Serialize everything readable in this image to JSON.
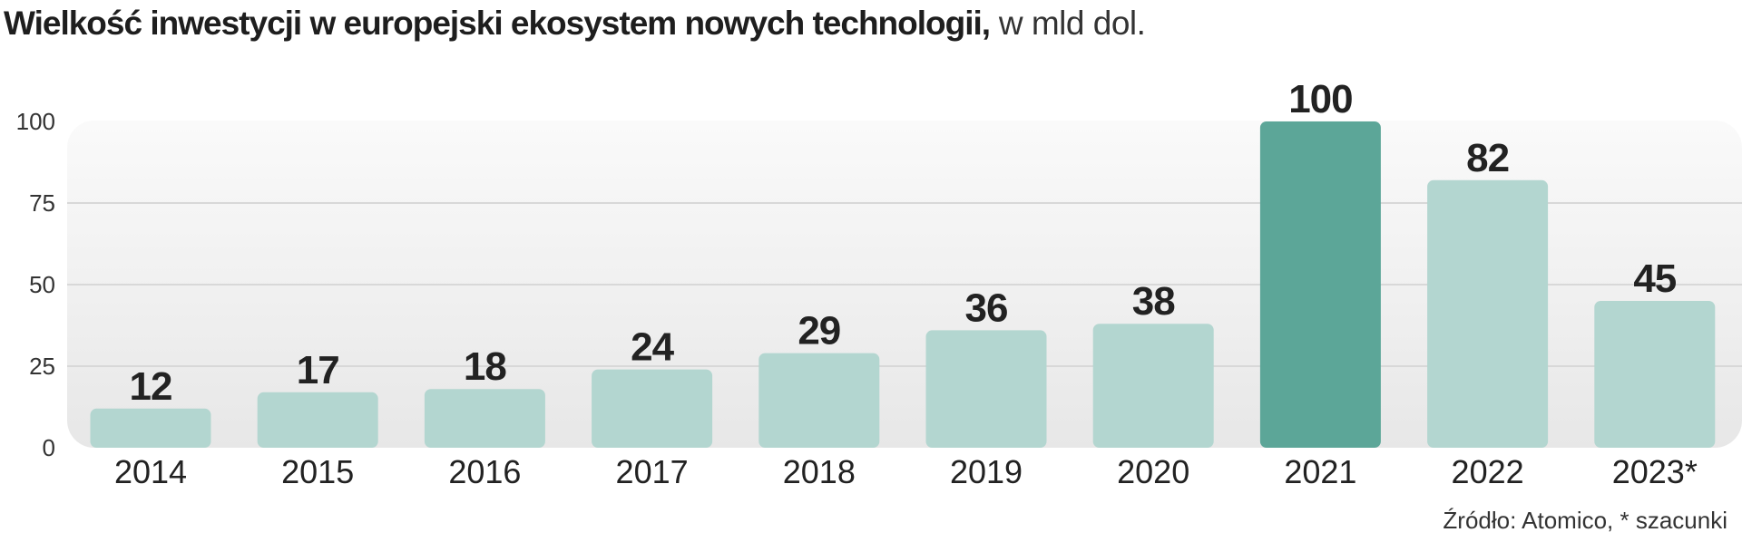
{
  "header": {
    "title_main": "Wielkość inwestycji w europejski ekosystem nowych technologii,",
    "title_unit": "w mld dol."
  },
  "footer": {
    "source": "Źródło: Atomico, * szacunki"
  },
  "colors": {
    "bar_default": "#b3d6d0",
    "bar_highlight": "#5ca698",
    "panel_top": "#fafafa",
    "panel_bottom": "#e7e7e7",
    "grid": "#d8d8d8",
    "label": "#222222"
  },
  "chart_data": {
    "type": "bar",
    "title": "Wielkość inwestycji w europejski ekosystem nowych technologii, w mld dol.",
    "xlabel": "",
    "ylabel": "",
    "categories": [
      "2014",
      "2015",
      "2016",
      "2017",
      "2018",
      "2019",
      "2020",
      "2021",
      "2022",
      "2023*"
    ],
    "values": [
      12,
      17,
      18,
      24,
      29,
      36,
      38,
      100,
      82,
      45
    ],
    "value_labels": [
      "12",
      "17",
      "18",
      "24",
      "29",
      "36",
      "38",
      "100",
      "82",
      "45"
    ],
    "highlight_category": "2021",
    "ylim": [
      0,
      100
    ],
    "yticks": [
      0,
      25,
      50,
      75,
      100
    ],
    "ytick_labels": [
      "0",
      "25",
      "50",
      "75",
      "100"
    ],
    "grid": true,
    "legend": "none"
  }
}
